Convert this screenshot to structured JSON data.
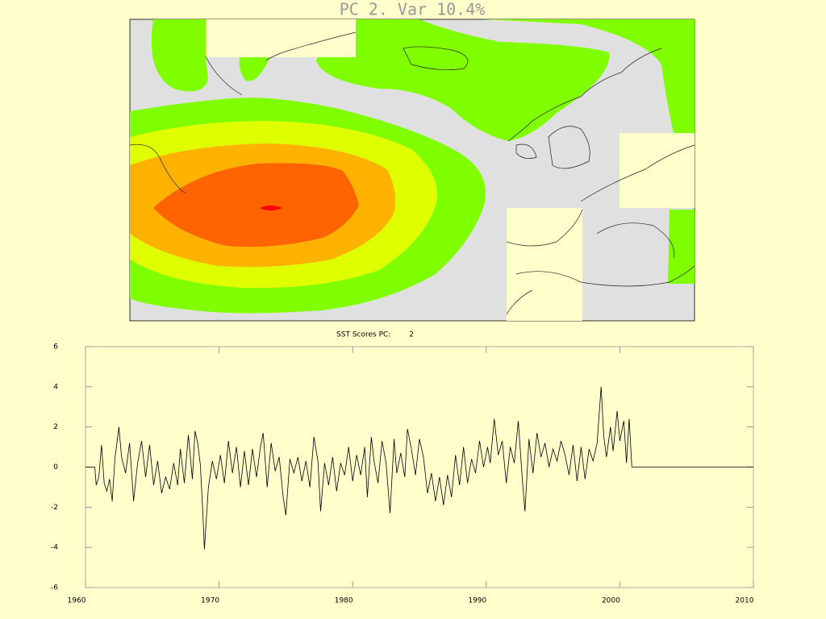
{
  "map": {
    "title": "PC  2. Var 10.4%"
  },
  "chart_data": {
    "type": "line",
    "title": "SST Scores PC:        2",
    "x": [
      1960.0,
      1960.7,
      1960.8,
      1961.0,
      1961.2,
      1961.4,
      1961.6,
      1961.8,
      1962.0,
      1962.2,
      1962.5,
      1962.7,
      1963.0,
      1963.3,
      1963.6,
      1963.9,
      1964.2,
      1964.5,
      1964.8,
      1965.1,
      1965.4,
      1965.7,
      1966.0,
      1966.3,
      1966.6,
      1966.9,
      1967.1,
      1967.4,
      1967.7,
      1968.0,
      1968.2,
      1968.4,
      1968.6,
      1968.8,
      1968.9,
      1969.2,
      1969.5,
      1969.8,
      1970.1,
      1970.4,
      1970.7,
      1971.0,
      1971.3,
      1971.6,
      1971.9,
      1972.2,
      1972.5,
      1972.8,
      1973.1,
      1973.3,
      1973.6,
      1973.9,
      1974.2,
      1974.5,
      1974.8,
      1975.0,
      1975.3,
      1975.6,
      1975.9,
      1976.2,
      1976.5,
      1976.8,
      1977.1,
      1977.4,
      1977.6,
      1977.9,
      1978.2,
      1978.5,
      1978.8,
      1979.1,
      1979.4,
      1979.7,
      1980.0,
      1980.3,
      1980.6,
      1980.9,
      1981.1,
      1981.4,
      1981.6,
      1981.9,
      1982.2,
      1982.5,
      1982.8,
      1983.1,
      1983.3,
      1983.6,
      1983.9,
      1984.1,
      1984.4,
      1984.7,
      1985.0,
      1985.3,
      1985.6,
      1985.9,
      1986.2,
      1986.5,
      1986.8,
      1987.1,
      1987.4,
      1987.7,
      1988.0,
      1988.3,
      1988.6,
      1988.9,
      1989.2,
      1989.5,
      1989.8,
      1990.1,
      1990.3,
      1990.6,
      1990.9,
      1991.2,
      1991.5,
      1991.8,
      1992.1,
      1992.4,
      1992.7,
      1992.9,
      1993.2,
      1993.5,
      1993.8,
      1994.1,
      1994.4,
      1994.7,
      1995.0,
      1995.3,
      1995.6,
      1995.9,
      1996.2,
      1996.5,
      1996.8,
      1997.1,
      1997.4,
      1997.7,
      1998.0,
      1998.3,
      1998.6,
      1998.8,
      1999.0,
      1999.3,
      1999.5,
      1999.8,
      2000.0,
      2000.3,
      2000.5,
      2000.7,
      2000.9,
      2010.0
    ],
    "values": [
      0,
      0,
      -0.9,
      -0.5,
      1.1,
      -0.8,
      -1.2,
      -0.6,
      -1.7,
      0.4,
      2.0,
      0.5,
      -0.3,
      1.2,
      -1.7,
      0.2,
      1.3,
      -0.5,
      1.1,
      -0.9,
      0.3,
      -1.3,
      -0.5,
      -1.1,
      0.2,
      -0.9,
      0.9,
      -0.8,
      1.6,
      -0.6,
      1.8,
      1.2,
      0.1,
      -2.5,
      -4.1,
      -1.0,
      0.3,
      -0.6,
      0.6,
      -0.8,
      1.3,
      -0.3,
      1.0,
      -1.0,
      0.8,
      -0.9,
      0.9,
      -0.5,
      1.0,
      1.7,
      -1.0,
      1.2,
      -0.2,
      0.5,
      -1.5,
      -2.4,
      0.4,
      -0.3,
      0.5,
      -0.7,
      0.3,
      -1.0,
      1.5,
      0.3,
      -2.2,
      0.2,
      -0.9,
      0.5,
      -1.2,
      0.2,
      -0.4,
      1.0,
      -0.7,
      0.6,
      -0.4,
      1.0,
      -1.5,
      1.5,
      0.3,
      -0.8,
      1.3,
      0.2,
      -2.3,
      1.4,
      -0.3,
      0.7,
      -0.5,
      1.9,
      0.9,
      -0.4,
      1.4,
      0.5,
      -1.3,
      -0.3,
      -1.7,
      -0.5,
      -1.9,
      -0.4,
      -1.5,
      0.6,
      -0.9,
      1.0,
      -0.8,
      0.4,
      -0.3,
      1.3,
      0.0,
      1.0,
      0.2,
      2.4,
      0.6,
      1.3,
      -0.8,
      1.0,
      0.2,
      2.3,
      -0.6,
      -2.2,
      1.4,
      -0.3,
      1.7,
      0.5,
      1.2,
      0.0,
      0.9,
      0.3,
      1.3,
      0.6,
      -0.4,
      1.1,
      -0.7,
      1.0,
      -0.6,
      0.9,
      0.3,
      1.2,
      4.0,
      1.5,
      0.5,
      2.0,
      0.8,
      2.8,
      1.3,
      2.3,
      0.2,
      2.4,
      0.0,
      0
    ],
    "color": "#000000",
    "xlim": [
      1960,
      2010
    ],
    "xticks": [
      1960,
      1970,
      1980,
      1990,
      2000,
      2010
    ],
    "ylim": [
      -6,
      6
    ],
    "yticks": [
      -6,
      -4,
      -2,
      0,
      2,
      4,
      6
    ],
    "grid": false
  }
}
